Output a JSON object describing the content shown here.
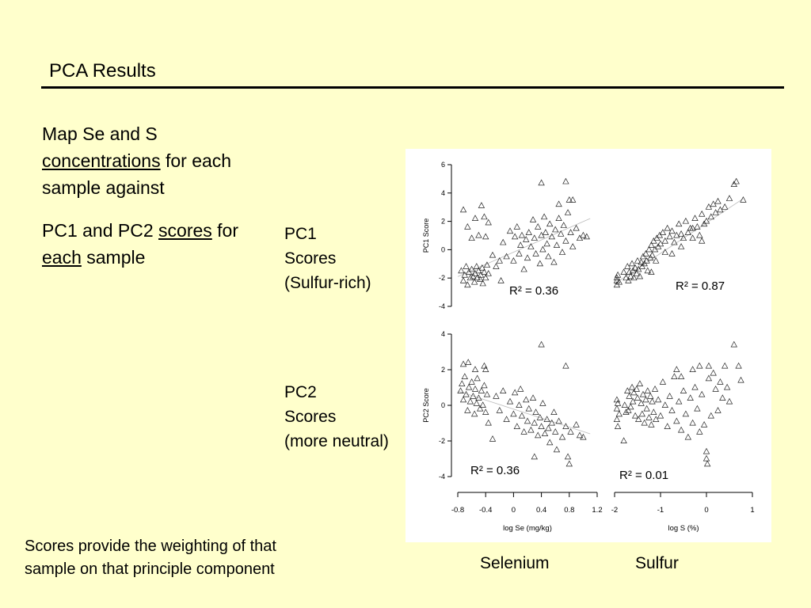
{
  "slide": {
    "title": "PCA Results",
    "bullet1": {
      "pre": "Map Se and S ",
      "u": "concentrations",
      "post": " for each sample against"
    },
    "bullet2": {
      "pre": "PC1 and PC2 ",
      "u1": "scores",
      "mid": " for ",
      "u2": "each",
      "post": " sample"
    },
    "pc1_label": {
      "line1": "PC1",
      "line2": "Scores",
      "line3": "(Sulfur-rich)"
    },
    "pc2_label": {
      "line1": "PC2",
      "line2": "Scores",
      "line3": "(more neutral)"
    },
    "footnote": "Scores provide the weighting of that sample on that principle component",
    "selenium_label": "Selenium",
    "sulfur_label": "Sulfur"
  },
  "chart_data": [
    {
      "type": "scatter",
      "xlabel": "log Se (mg/kg)",
      "ylabel": "PC1 Score",
      "xlim": [
        -0.8,
        1.2
      ],
      "ylim": [
        -4,
        6
      ],
      "xticks": [
        "-0.8",
        "-0.4",
        "0",
        "0.4",
        "0.8",
        "1.2"
      ],
      "yticks": [
        "-4",
        "-2",
        "0",
        "2",
        "4",
        "6"
      ],
      "annotation": "R² = 0.36",
      "marker": "open-triangle",
      "trend": [
        [
          -0.8,
          -1.9
        ],
        [
          1.1,
          2.2
        ]
      ],
      "points": [
        [
          -0.75,
          -1.5
        ],
        [
          -0.72,
          -2.2
        ],
        [
          -0.7,
          -1.8
        ],
        [
          -0.68,
          -1.2
        ],
        [
          -0.66,
          -2.5
        ],
        [
          -0.64,
          -1.6
        ],
        [
          -0.62,
          -2.0
        ],
        [
          -0.6,
          -1.4
        ],
        [
          -0.58,
          -1.9
        ],
        [
          -0.56,
          -2.3
        ],
        [
          -0.55,
          -1.7
        ],
        [
          -0.53,
          -1.2
        ],
        [
          -0.52,
          -2.0
        ],
        [
          -0.5,
          -1.5
        ],
        [
          -0.48,
          -2.1
        ],
        [
          -0.47,
          -1.8
        ],
        [
          -0.45,
          -1.3
        ],
        [
          -0.44,
          -2.4
        ],
        [
          -0.42,
          -1.6
        ],
        [
          -0.4,
          -2.0
        ],
        [
          -0.38,
          -1.1
        ],
        [
          -0.36,
          -1.7
        ],
        [
          -0.72,
          2.8
        ],
        [
          -0.66,
          1.6
        ],
        [
          -0.6,
          0.8
        ],
        [
          -0.55,
          2.2
        ],
        [
          -0.5,
          1.0
        ],
        [
          -0.46,
          3.1
        ],
        [
          -0.42,
          2.3
        ],
        [
          -0.4,
          0.9
        ],
        [
          -0.36,
          1.9
        ],
        [
          -0.3,
          -0.4
        ],
        [
          -0.25,
          -1.2
        ],
        [
          -0.2,
          -0.8
        ],
        [
          -0.18,
          -2.2
        ],
        [
          -0.15,
          0.5
        ],
        [
          -0.1,
          -0.5
        ],
        [
          -0.05,
          1.3
        ],
        [
          0.0,
          -0.8
        ],
        [
          0.02,
          0.9
        ],
        [
          0.05,
          1.6
        ],
        [
          0.08,
          -0.3
        ],
        [
          0.1,
          0.3
        ],
        [
          0.12,
          1.0
        ],
        [
          0.15,
          -1.4
        ],
        [
          0.18,
          0.7
        ],
        [
          0.2,
          -0.6
        ],
        [
          0.22,
          1.2
        ],
        [
          0.25,
          0.2
        ],
        [
          0.28,
          2.1
        ],
        [
          0.3,
          0.8
        ],
        [
          0.32,
          -0.3
        ],
        [
          0.35,
          1.6
        ],
        [
          0.38,
          -1.0
        ],
        [
          0.4,
          1.0
        ],
        [
          0.42,
          0.0
        ],
        [
          0.44,
          2.3
        ],
        [
          0.46,
          1.2
        ],
        [
          0.48,
          0.4
        ],
        [
          0.5,
          -0.5
        ],
        [
          0.52,
          1.8
        ],
        [
          0.55,
          0.9
        ],
        [
          0.58,
          -0.9
        ],
        [
          0.6,
          1.4
        ],
        [
          0.62,
          0.3
        ],
        [
          0.65,
          2.2
        ],
        [
          0.68,
          1.1
        ],
        [
          0.7,
          -0.2
        ],
        [
          0.72,
          1.7
        ],
        [
          0.75,
          0.6
        ],
        [
          0.78,
          2.6
        ],
        [
          0.8,
          3.5
        ],
        [
          0.82,
          1.2
        ],
        [
          0.85,
          0.2
        ],
        [
          0.9,
          1.5
        ],
        [
          0.95,
          0.8
        ],
        [
          1.0,
          1.0
        ],
        [
          1.05,
          0.9
        ],
        [
          0.4,
          4.7
        ],
        [
          0.75,
          4.8
        ],
        [
          0.65,
          3.2
        ],
        [
          0.85,
          3.5
        ]
      ]
    },
    {
      "type": "scatter",
      "xlabel": "log S (%)",
      "ylabel": "",
      "xlim": [
        -2,
        1
      ],
      "ylim": [
        -4,
        6
      ],
      "xticks": [
        "-2",
        "-1",
        "0",
        "1"
      ],
      "annotation": "R² = 0.87",
      "marker": "open-triangle",
      "trend": [
        [
          -2.0,
          -2.4
        ],
        [
          0.8,
          3.6
        ]
      ],
      "points": [
        [
          -1.95,
          -2.5
        ],
        [
          -1.95,
          -2.0
        ],
        [
          -1.95,
          -2.2
        ],
        [
          -1.93,
          -1.8
        ],
        [
          -1.9,
          -2.3
        ],
        [
          -1.8,
          -1.6
        ],
        [
          -1.75,
          -2.0
        ],
        [
          -1.72,
          -1.2
        ],
        [
          -1.7,
          -2.2
        ],
        [
          -1.68,
          -1.6
        ],
        [
          -1.65,
          -1.9
        ],
        [
          -1.62,
          -1.0
        ],
        [
          -1.6,
          -1.5
        ],
        [
          -1.58,
          -2.0
        ],
        [
          -1.55,
          -1.3
        ],
        [
          -1.52,
          -1.7
        ],
        [
          -1.5,
          -0.8
        ],
        [
          -1.48,
          -1.4
        ],
        [
          -1.45,
          -1.9
        ],
        [
          -1.42,
          -0.9
        ],
        [
          -1.4,
          -1.2
        ],
        [
          -1.38,
          -0.5
        ],
        [
          -1.35,
          -1.0
        ],
        [
          -1.32,
          -0.3
        ],
        [
          -1.3,
          -0.8
        ],
        [
          -1.28,
          -1.5
        ],
        [
          -1.25,
          0.0
        ],
        [
          -1.22,
          -0.6
        ],
        [
          -1.2,
          0.3
        ],
        [
          -1.18,
          -0.4
        ],
        [
          -1.15,
          0.6
        ],
        [
          -1.12,
          0.0
        ],
        [
          -1.1,
          -0.8
        ],
        [
          -1.08,
          0.8
        ],
        [
          -1.05,
          0.2
        ],
        [
          -1.02,
          1.0
        ],
        [
          -1.0,
          0.4
        ],
        [
          -0.95,
          1.2
        ],
        [
          -0.9,
          0.6
        ],
        [
          -0.85,
          1.5
        ],
        [
          -0.8,
          0.9
        ],
        [
          -0.75,
          1.3
        ],
        [
          -0.7,
          0.5
        ],
        [
          -0.65,
          1.0
        ],
        [
          -0.6,
          1.8
        ],
        [
          -0.55,
          1.1
        ],
        [
          -0.5,
          0.8
        ],
        [
          -0.45,
          2.0
        ],
        [
          -0.4,
          1.2
        ],
        [
          -0.35,
          1.5
        ],
        [
          -0.3,
          0.8
        ],
        [
          -0.25,
          2.2
        ],
        [
          -0.2,
          1.6
        ],
        [
          -0.15,
          1.0
        ],
        [
          -0.1,
          2.5
        ],
        [
          -0.05,
          1.8
        ],
        [
          0.0,
          2.0
        ],
        [
          0.05,
          3.0
        ],
        [
          0.1,
          2.3
        ],
        [
          0.15,
          3.2
        ],
        [
          0.2,
          2.6
        ],
        [
          0.25,
          3.4
        ],
        [
          0.3,
          2.8
        ],
        [
          0.4,
          3.0
        ],
        [
          0.5,
          3.6
        ],
        [
          0.6,
          4.6
        ],
        [
          0.65,
          4.8
        ],
        [
          0.8,
          3.5
        ],
        [
          -0.1,
          0.6
        ],
        [
          -0.3,
          1.5
        ],
        [
          -0.55,
          0.2
        ],
        [
          -0.75,
          -0.3
        ],
        [
          -1.2,
          -1.6
        ],
        [
          -0.9,
          -0.2
        ]
      ]
    },
    {
      "type": "scatter",
      "xlabel": "log Se (mg/kg)",
      "ylabel": "PC2 Score",
      "xlim": [
        -0.8,
        1.2
      ],
      "ylim": [
        -4,
        4
      ],
      "xticks": [
        "-0.8",
        "-0.4",
        "0",
        "0.4",
        "0.8",
        "1.2"
      ],
      "yticks": [
        "-4",
        "-2",
        "0",
        "2",
        "4"
      ],
      "annotation": "R² = 0.36",
      "marker": "open-triangle",
      "trend": [
        [
          -0.8,
          0.8
        ],
        [
          1.1,
          -1.6
        ]
      ],
      "points": [
        [
          -0.76,
          0.8
        ],
        [
          -0.74,
          1.2
        ],
        [
          -0.72,
          0.3
        ],
        [
          -0.7,
          1.6
        ],
        [
          -0.68,
          0.6
        ],
        [
          -0.66,
          -0.3
        ],
        [
          -0.64,
          1.0
        ],
        [
          -0.62,
          0.2
        ],
        [
          -0.6,
          1.3
        ],
        [
          -0.58,
          0.5
        ],
        [
          -0.56,
          -0.5
        ],
        [
          -0.55,
          0.9
        ],
        [
          -0.53,
          0.1
        ],
        [
          -0.52,
          1.5
        ],
        [
          -0.5,
          0.4
        ],
        [
          -0.48,
          -0.2
        ],
        [
          -0.46,
          0.8
        ],
        [
          -0.44,
          0.0
        ],
        [
          -0.42,
          1.1
        ],
        [
          -0.4,
          -0.4
        ],
        [
          -0.38,
          0.6
        ],
        [
          -0.36,
          -1.0
        ],
        [
          -0.72,
          2.3
        ],
        [
          -0.65,
          2.4
        ],
        [
          -0.55,
          2.0
        ],
        [
          -0.42,
          2.2
        ],
        [
          -0.4,
          2.0
        ],
        [
          -0.3,
          -1.9
        ],
        [
          -0.25,
          0.5
        ],
        [
          -0.2,
          -0.3
        ],
        [
          -0.15,
          0.8
        ],
        [
          -0.1,
          -0.8
        ],
        [
          -0.05,
          0.2
        ],
        [
          0.0,
          -0.5
        ],
        [
          0.02,
          0.7
        ],
        [
          0.05,
          -1.2
        ],
        [
          0.08,
          0.0
        ],
        [
          0.1,
          0.9
        ],
        [
          0.12,
          -0.6
        ],
        [
          0.15,
          -1.5
        ],
        [
          0.18,
          0.3
        ],
        [
          0.2,
          -0.9
        ],
        [
          0.22,
          -0.2
        ],
        [
          0.25,
          -1.4
        ],
        [
          0.28,
          0.4
        ],
        [
          0.3,
          -1.0
        ],
        [
          0.32,
          -0.4
        ],
        [
          0.35,
          -1.7
        ],
        [
          0.38,
          -0.7
        ],
        [
          0.4,
          -1.2
        ],
        [
          0.42,
          0.1
        ],
        [
          0.45,
          -1.6
        ],
        [
          0.48,
          -0.8
        ],
        [
          0.5,
          -1.3
        ],
        [
          0.52,
          -2.1
        ],
        [
          0.55,
          -1.0
        ],
        [
          0.58,
          -0.4
        ],
        [
          0.6,
          -1.5
        ],
        [
          0.62,
          -2.5
        ],
        [
          0.65,
          -0.9
        ],
        [
          0.7,
          -1.8
        ],
        [
          0.75,
          -1.2
        ],
        [
          0.78,
          -2.9
        ],
        [
          0.82,
          -1.5
        ],
        [
          0.9,
          -1.1
        ],
        [
          0.95,
          -1.7
        ],
        [
          1.0,
          -1.8
        ],
        [
          0.4,
          3.4
        ],
        [
          0.75,
          2.2
        ],
        [
          0.8,
          -3.3
        ],
        [
          0.3,
          -2.9
        ]
      ]
    },
    {
      "type": "scatter",
      "xlabel": "log S (%)",
      "ylabel": "",
      "xlim": [
        -2,
        1
      ],
      "ylim": [
        -4,
        4
      ],
      "xticks": [
        "-2",
        "-1",
        "0",
        "1"
      ],
      "annotation": "R² = 0.01",
      "marker": "open-triangle",
      "points": [
        [
          -1.95,
          -0.2
        ],
        [
          -1.95,
          0.3
        ],
        [
          -1.95,
          -0.8
        ],
        [
          -1.93,
          0.1
        ],
        [
          -1.93,
          -1.2
        ],
        [
          -1.9,
          -0.5
        ],
        [
          -1.8,
          -2.0
        ],
        [
          -1.78,
          0.0
        ],
        [
          -1.75,
          -0.4
        ],
        [
          -1.72,
          0.8
        ],
        [
          -1.7,
          -0.3
        ],
        [
          -1.68,
          0.5
        ],
        [
          -1.65,
          -0.1
        ],
        [
          -1.62,
          1.0
        ],
        [
          -1.6,
          0.2
        ],
        [
          -1.58,
          0.7
        ],
        [
          -1.55,
          -0.6
        ],
        [
          -1.52,
          0.9
        ],
        [
          -1.5,
          0.4
        ],
        [
          -1.48,
          -0.8
        ],
        [
          -1.45,
          1.2
        ],
        [
          -1.42,
          0.1
        ],
        [
          -1.4,
          -0.5
        ],
        [
          -1.38,
          0.6
        ],
        [
          -1.35,
          -1.0
        ],
        [
          -1.32,
          0.3
        ],
        [
          -1.3,
          -0.2
        ],
        [
          -1.28,
          0.8
        ],
        [
          -1.25,
          -0.7
        ],
        [
          -1.22,
          0.5
        ],
        [
          -1.2,
          -1.1
        ],
        [
          -1.18,
          0.2
        ],
        [
          -1.15,
          -0.4
        ],
        [
          -1.12,
          0.9
        ],
        [
          -1.1,
          -0.8
        ],
        [
          -1.05,
          0.3
        ],
        [
          -1.0,
          -0.6
        ],
        [
          -0.95,
          1.3
        ],
        [
          -0.9,
          0.0
        ],
        [
          -0.85,
          -1.2
        ],
        [
          -0.8,
          0.5
        ],
        [
          -0.75,
          -0.3
        ],
        [
          -0.7,
          1.6
        ],
        [
          -0.65,
          -0.9
        ],
        [
          -0.6,
          0.2
        ],
        [
          -0.55,
          -1.4
        ],
        [
          -0.5,
          0.8
        ],
        [
          -0.45,
          -0.5
        ],
        [
          -0.4,
          -1.8
        ],
        [
          -0.35,
          0.4
        ],
        [
          -0.3,
          -1.0
        ],
        [
          -0.25,
          1.0
        ],
        [
          -0.2,
          -0.2
        ],
        [
          -0.15,
          -1.5
        ],
        [
          -0.1,
          0.6
        ],
        [
          -0.05,
          -1.1
        ],
        [
          0.0,
          -2.6
        ],
        [
          0.02,
          -3.3
        ],
        [
          0.05,
          1.5
        ],
        [
          0.1,
          -0.6
        ],
        [
          0.15,
          1.8
        ],
        [
          0.2,
          0.9
        ],
        [
          0.25,
          -0.3
        ],
        [
          0.3,
          1.3
        ],
        [
          0.35,
          0.4
        ],
        [
          0.4,
          2.2
        ],
        [
          0.45,
          1.0
        ],
        [
          0.5,
          0.2
        ],
        [
          0.6,
          3.4
        ],
        [
          0.7,
          2.2
        ],
        [
          0.75,
          1.4
        ],
        [
          -0.65,
          2.0
        ],
        [
          -0.55,
          1.6
        ],
        [
          -0.3,
          2.0
        ],
        [
          -0.15,
          2.2
        ],
        [
          0.0,
          -3.0
        ],
        [
          0.05,
          2.2
        ]
      ]
    }
  ]
}
